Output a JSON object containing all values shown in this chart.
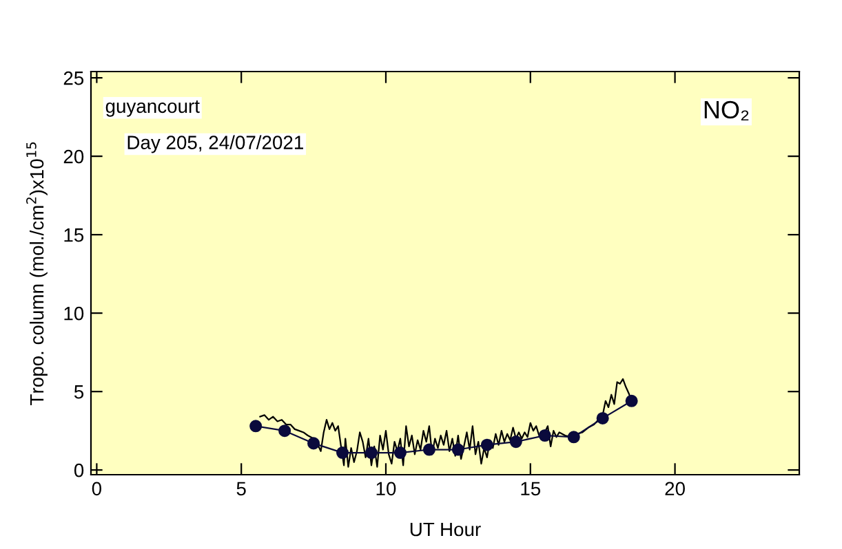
{
  "chart_data": {
    "type": "line",
    "xlabel": "UT Hour",
    "ylabel": "Tropo. column (mol./cm$^{2}$)x10$^{15}$",
    "annotations": [
      "guyancourt",
      "Day 205, 24/07/2021",
      "NO₂"
    ],
    "xlim": [
      -0.2,
      24.3
    ],
    "ylim": [
      -0.3,
      25.4
    ],
    "xticks": [
      0,
      5,
      10,
      15,
      20
    ],
    "yticks": [
      0,
      5,
      10,
      15,
      20,
      25
    ],
    "grid": false,
    "legend": false,
    "series": [
      {
        "color": "#000000",
        "marker": "none",
        "x": [
          5.65,
          5.8,
          5.95,
          6.1,
          6.25,
          6.4,
          6.55,
          6.7,
          6.85,
          7.0,
          7.15,
          7.3,
          7.5,
          7.65,
          7.75,
          7.85,
          7.95,
          8.05,
          8.15,
          8.25,
          8.35,
          8.45,
          8.55,
          8.6,
          8.7,
          8.8,
          8.9,
          9.0,
          9.1,
          9.2,
          9.3,
          9.4,
          9.5,
          9.6,
          9.7,
          9.8,
          9.9,
          10.0,
          10.1,
          10.2,
          10.3,
          10.4,
          10.5,
          10.6,
          10.7,
          10.8,
          10.9,
          11.0,
          11.1,
          11.2,
          11.3,
          11.4,
          11.5,
          11.6,
          11.7,
          11.8,
          11.9,
          12.0,
          12.1,
          12.2,
          12.3,
          12.4,
          12.5,
          12.6,
          12.7,
          12.8,
          12.9,
          13.0,
          13.1,
          13.2,
          13.3,
          13.4,
          13.5,
          13.6,
          13.7,
          13.8,
          13.9,
          14.0,
          14.1,
          14.2,
          14.3,
          14.4,
          14.5,
          14.6,
          14.7,
          14.8,
          14.9,
          15.0,
          15.1,
          15.2,
          15.3,
          15.5,
          15.6,
          15.7,
          15.8,
          15.9,
          16.0,
          16.2,
          16.4,
          16.6,
          16.8,
          17.0,
          17.2,
          17.4,
          17.5,
          17.6,
          17.7,
          17.8,
          17.9,
          18.0,
          18.1,
          18.2,
          18.3,
          18.4,
          18.5
        ],
        "values": [
          3.4,
          3.5,
          3.2,
          3.4,
          3.1,
          3.2,
          2.9,
          2.9,
          2.6,
          2.5,
          2.4,
          2.2,
          2.0,
          1.6,
          1.2,
          2.4,
          3.2,
          2.6,
          3.0,
          2.5,
          2.8,
          1.5,
          0.3,
          2.0,
          0.2,
          1.4,
          0.5,
          1.2,
          2.4,
          1.8,
          0.8,
          2.0,
          0.3,
          1.5,
          0.2,
          2.2,
          1.3,
          2.5,
          1.0,
          0.4,
          1.8,
          1.2,
          2.0,
          0.3,
          2.8,
          1.5,
          2.2,
          1.0,
          1.9,
          1.3,
          2.5,
          1.8,
          2.8,
          1.0,
          2.0,
          1.4,
          2.2,
          1.6,
          2.5,
          1.2,
          2.0,
          0.9,
          2.2,
          0.7,
          1.5,
          2.4,
          1.3,
          2.8,
          1.0,
          1.8,
          0.4,
          1.4,
          0.8,
          1.9,
          1.4,
          2.3,
          1.6,
          2.5,
          1.8,
          2.3,
          1.9,
          2.7,
          2.0,
          2.4,
          2.0,
          2.4,
          2.1,
          3.0,
          2.5,
          2.8,
          2.2,
          2.4,
          2.8,
          1.5,
          2.5,
          2.1,
          2.4,
          2.2,
          2.1,
          2.3,
          2.4,
          2.7,
          2.9,
          3.3,
          3.5,
          4.4,
          4.0,
          4.8,
          4.2,
          5.6,
          5.5,
          5.8,
          5.3,
          4.9,
          4.4
        ]
      },
      {
        "color": "#0a0a3c",
        "marker": "circle",
        "x": [
          5.5,
          6.5,
          7.5,
          8.5,
          9.5,
          10.5,
          11.5,
          12.5,
          13.5,
          14.5,
          15.5,
          16.5,
          17.5,
          18.5
        ],
        "values": [
          2.8,
          2.5,
          1.7,
          1.1,
          1.1,
          1.1,
          1.3,
          1.3,
          1.6,
          1.8,
          2.2,
          2.1,
          3.3,
          4.4
        ]
      }
    ]
  }
}
